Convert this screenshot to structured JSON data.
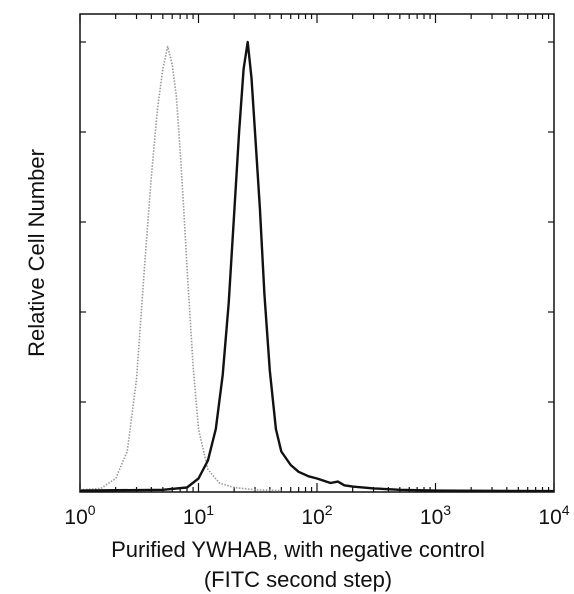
{
  "chart_data": {
    "type": "line",
    "title": "",
    "xlabel": "Purified YWHAB, with negative control",
    "xlabel_line2": "(FITC second step)",
    "ylabel": "Relative Cell Number",
    "x_scale": "log",
    "xlim": [
      1,
      10000
    ],
    "ylim": [
      0,
      100
    ],
    "grid": false,
    "legend": "none",
    "x_ticks": [
      {
        "base": "10",
        "exp": "0"
      },
      {
        "base": "10",
        "exp": "1"
      },
      {
        "base": "10",
        "exp": "2"
      },
      {
        "base": "10",
        "exp": "3"
      },
      {
        "base": "10",
        "exp": "4"
      }
    ],
    "series": [
      {
        "color": "#9a9a9a",
        "style": "dotted",
        "x": [
          1,
          1.5,
          2,
          2.5,
          3,
          3.5,
          4,
          4.5,
          5,
          5.5,
          6,
          6.5,
          7,
          7.5,
          8,
          9,
          10,
          12,
          15,
          20,
          30,
          50
        ],
        "y": [
          0.5,
          0.8,
          3,
          9,
          25,
          50,
          70,
          85,
          94,
          99,
          95,
          88,
          76,
          63,
          50,
          28,
          14,
          5,
          2,
          1,
          0.5,
          0.3
        ]
      },
      {
        "color": "#111111",
        "style": "solid",
        "x": [
          1,
          5,
          8,
          10,
          12,
          14,
          16,
          18,
          20,
          22,
          24,
          26,
          28,
          30,
          33,
          36,
          40,
          45,
          50,
          60,
          70,
          85,
          100,
          130,
          150,
          170,
          200,
          300,
          500,
          1000,
          10000
        ],
        "y": [
          0.3,
          0.5,
          1,
          3,
          7,
          14,
          26,
          42,
          62,
          80,
          94,
          100,
          92,
          80,
          63,
          44,
          27,
          14,
          9,
          6,
          4.5,
          3.5,
          3,
          2,
          2.3,
          1.5,
          1.2,
          0.8,
          0.5,
          0.3,
          0.2
        ]
      }
    ]
  }
}
